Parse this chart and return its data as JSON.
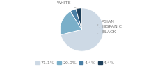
{
  "labels": [
    "WHITE",
    "HISPANIC",
    "ASIAN",
    "BLACK"
  ],
  "values": [
    71.1,
    20.0,
    4.4,
    4.4
  ],
  "colors": [
    "#cdd9e5",
    "#7aafc9",
    "#4a7fa5",
    "#1e3f5a"
  ],
  "legend_labels": [
    "71.1%",
    "20.0%",
    "4.4%",
    "4.4%"
  ],
  "figsize": [
    2.4,
    1.0
  ],
  "dpi": 100,
  "text_color": "#777777",
  "line_color": "#999999"
}
